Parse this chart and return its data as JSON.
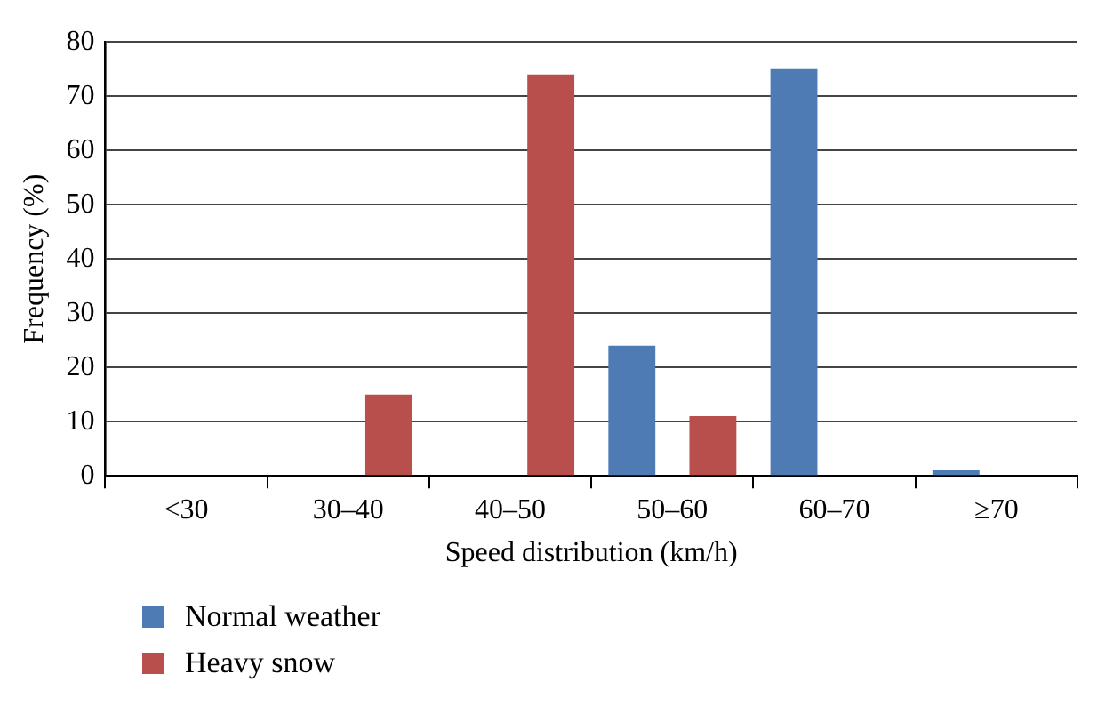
{
  "chart_data": {
    "type": "bar",
    "xlabel": "Speed distribution (km/h)",
    "ylabel": "Frequency (%)",
    "categories": [
      "<30",
      "30–40",
      "40–50",
      "50–60",
      "60–70",
      "≥70"
    ],
    "series": [
      {
        "name": "Normal weather",
        "color": "#4f7bb4",
        "values": [
          0,
          0,
          0,
          24,
          75,
          1
        ]
      },
      {
        "name": "Heavy snow",
        "color": "#b84f4c",
        "values": [
          0,
          15,
          74,
          11,
          0,
          0
        ]
      }
    ],
    "ylim": [
      0,
      80
    ],
    "yticks": [
      0,
      10,
      20,
      30,
      40,
      50,
      60,
      70,
      80
    ],
    "grid": "y",
    "legend": "bottom left"
  }
}
